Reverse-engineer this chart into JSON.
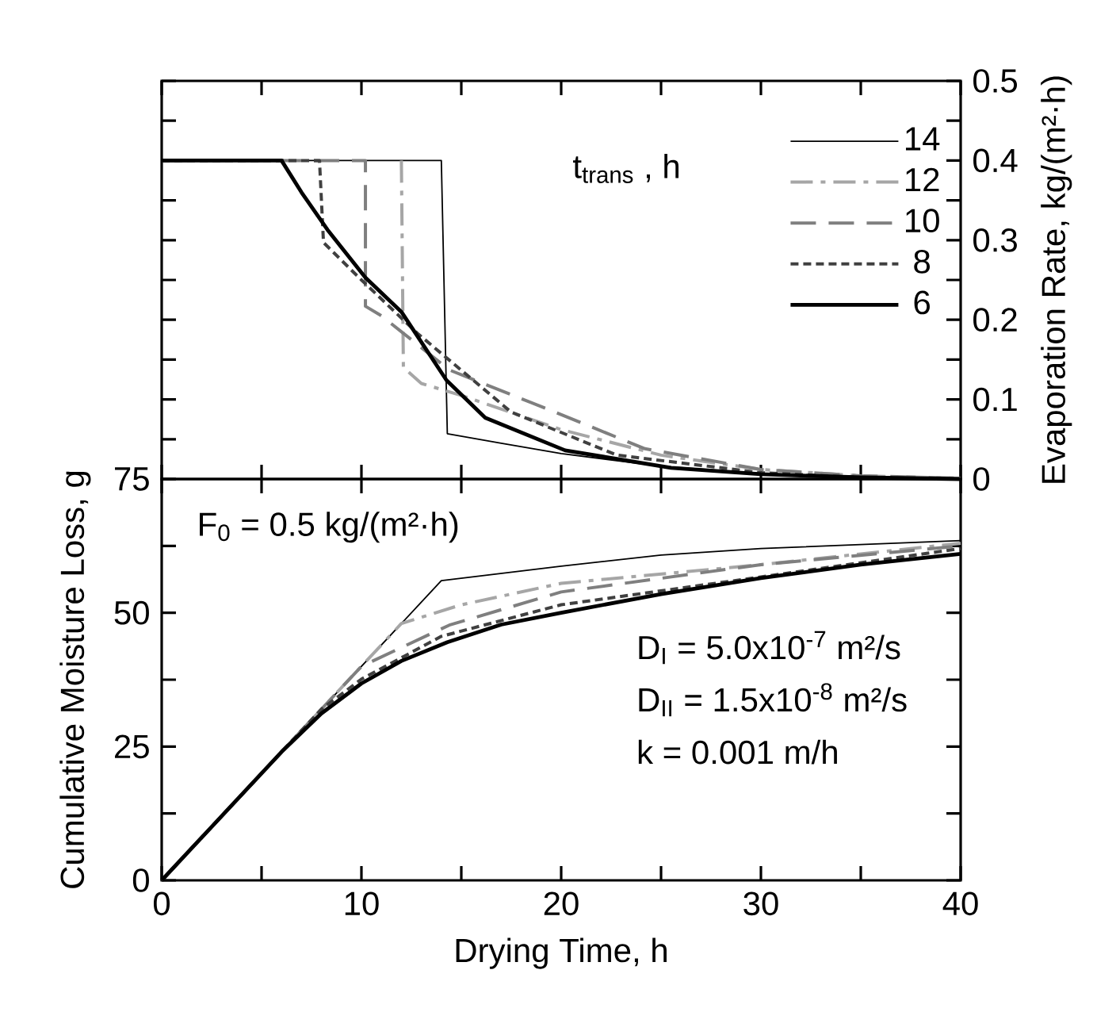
{
  "chart_data": [
    {
      "type": "line",
      "ylabel": "Evaporation Rate, kg/(m²·h)",
      "legend_title": "t$_{trans}$ , h",
      "legend": "top right",
      "tick_labels": "y",
      "xlim": [
        0,
        40
      ],
      "xticks": [
        0,
        {
          "value": 5,
          "label": null
        },
        10,
        {
          "value": 15,
          "label": null
        },
        20,
        {
          "value": 25,
          "label": null
        },
        30,
        {
          "value": 35,
          "label": null
        },
        40
      ],
      "ylim": [
        0,
        0.5
      ],
      "yticks": [
        0,
        {
          "value": 0.05,
          "label": null
        },
        0.1,
        {
          "value": 0.15,
          "label": null
        },
        0.2,
        {
          "value": 0.25,
          "label": null
        },
        0.3,
        {
          "value": 0.35,
          "label": null
        },
        0.4,
        {
          "value": 0.45,
          "label": null
        },
        0.5
      ],
      "series": [
        {
          "name": "14",
          "color": "#000000",
          "line_style": "solid",
          "x": [
            0,
            14,
            14.3,
            17,
            20,
            25,
            30,
            35,
            40
          ],
          "values": [
            0.4,
            0.4,
            0.057,
            0.045,
            0.032,
            0.016,
            0.007,
            0.002,
            0
          ]
        },
        {
          "name": "12",
          "color": "#a6a6a6",
          "line_style": "dashdot",
          "x": [
            12,
            12.1,
            13,
            15,
            20,
            25,
            30,
            35,
            40
          ],
          "values": [
            0.4,
            0.14,
            0.12,
            0.105,
            0.062,
            0.03,
            0.012,
            0.004,
            0.001
          ]
        },
        {
          "name": "10",
          "color": "#7f7f7f",
          "line_style": "longdashed",
          "x": [
            0,
            10.2,
            10.2,
            11,
            14.4,
            19.7,
            24.2,
            30,
            35,
            40
          ],
          "values": [
            0.4,
            0.4,
            0.217,
            0.205,
            0.137,
            0.084,
            0.038,
            0.012,
            0.004,
            0.001
          ]
        },
        {
          "name": "8",
          "color": "#404040",
          "line_style": "dashed",
          "x": [
            0,
            7.9,
            8.1,
            10,
            12.8,
            17.5,
            22.8,
            30,
            35,
            40
          ],
          "values": [
            0.4,
            0.4,
            0.297,
            0.25,
            0.183,
            0.084,
            0.03,
            0.008,
            0.002,
            0
          ]
        },
        {
          "name": "6",
          "color": "#000000",
          "line_style": "solid",
          "x": [
            0,
            6,
            7,
            8.3,
            10.2,
            12,
            14.26,
            16.2,
            20.2,
            25.5,
            30,
            35,
            40
          ],
          "values": [
            0.4,
            0.4,
            0.36,
            0.313,
            0.253,
            0.21,
            0.124,
            0.077,
            0.036,
            0.014,
            0.006,
            0.002,
            0
          ]
        }
      ]
    },
    {
      "type": "line",
      "xlabel": "Drying Time, h",
      "ylabel": "Cumulative Moisture Loss, g",
      "annotations": [
        "F$_{0}$  = 0.5 kg/(m²·h)",
        "D$_{I}$  = 5.0x10$^{-7}$ m²/s",
        "D$_{II}$ = 1.5x10$^{-8}$ m²/s",
        "k     = 0.001 m/h"
      ],
      "xlim": [
        0,
        40
      ],
      "xticks": [
        0,
        {
          "value": 5,
          "label": null
        },
        10,
        {
          "value": 15,
          "label": null
        },
        20,
        {
          "value": 25,
          "label": null
        },
        30,
        {
          "value": 35,
          "label": null
        },
        40
      ],
      "ylim": [
        0,
        75
      ],
      "yticks": [
        0,
        {
          "value": 12.5,
          "label": null
        },
        25,
        {
          "value": 37.5,
          "label": null
        },
        50,
        {
          "value": 62.5,
          "label": null
        },
        75
      ],
      "series": [
        {
          "color": "#000000",
          "line_style": "solid",
          "x": [
            0,
            14,
            20,
            25,
            30,
            40
          ],
          "values": [
            0,
            56,
            58.7,
            60.8,
            62,
            63.5
          ]
        },
        {
          "color": "#a6a6a6",
          "line_style": "dashdot",
          "x": [
            0,
            12,
            15,
            20,
            30,
            40
          ],
          "values": [
            0,
            48,
            51.5,
            55.5,
            59,
            63
          ]
        },
        {
          "color": "#7f7f7f",
          "line_style": "longdashed",
          "x": [
            0,
            10,
            14.4,
            20,
            30,
            40
          ],
          "values": [
            0,
            40,
            47.7,
            53.9,
            59,
            62.5
          ]
        },
        {
          "color": "#404040",
          "line_style": "dashed",
          "x": [
            0,
            8,
            10,
            14,
            20,
            30,
            40
          ],
          "values": [
            0,
            32,
            37.6,
            45.6,
            51.5,
            56.7,
            62
          ]
        },
        {
          "color": "#000000",
          "line_style": "solid",
          "x": [
            0,
            6,
            8,
            10,
            12,
            14.3,
            17,
            20,
            25,
            30,
            35,
            40
          ],
          "values": [
            0,
            24,
            31.2,
            36.8,
            41,
            44.5,
            47.8,
            50,
            53.5,
            56.5,
            59,
            61
          ]
        }
      ]
    }
  ]
}
